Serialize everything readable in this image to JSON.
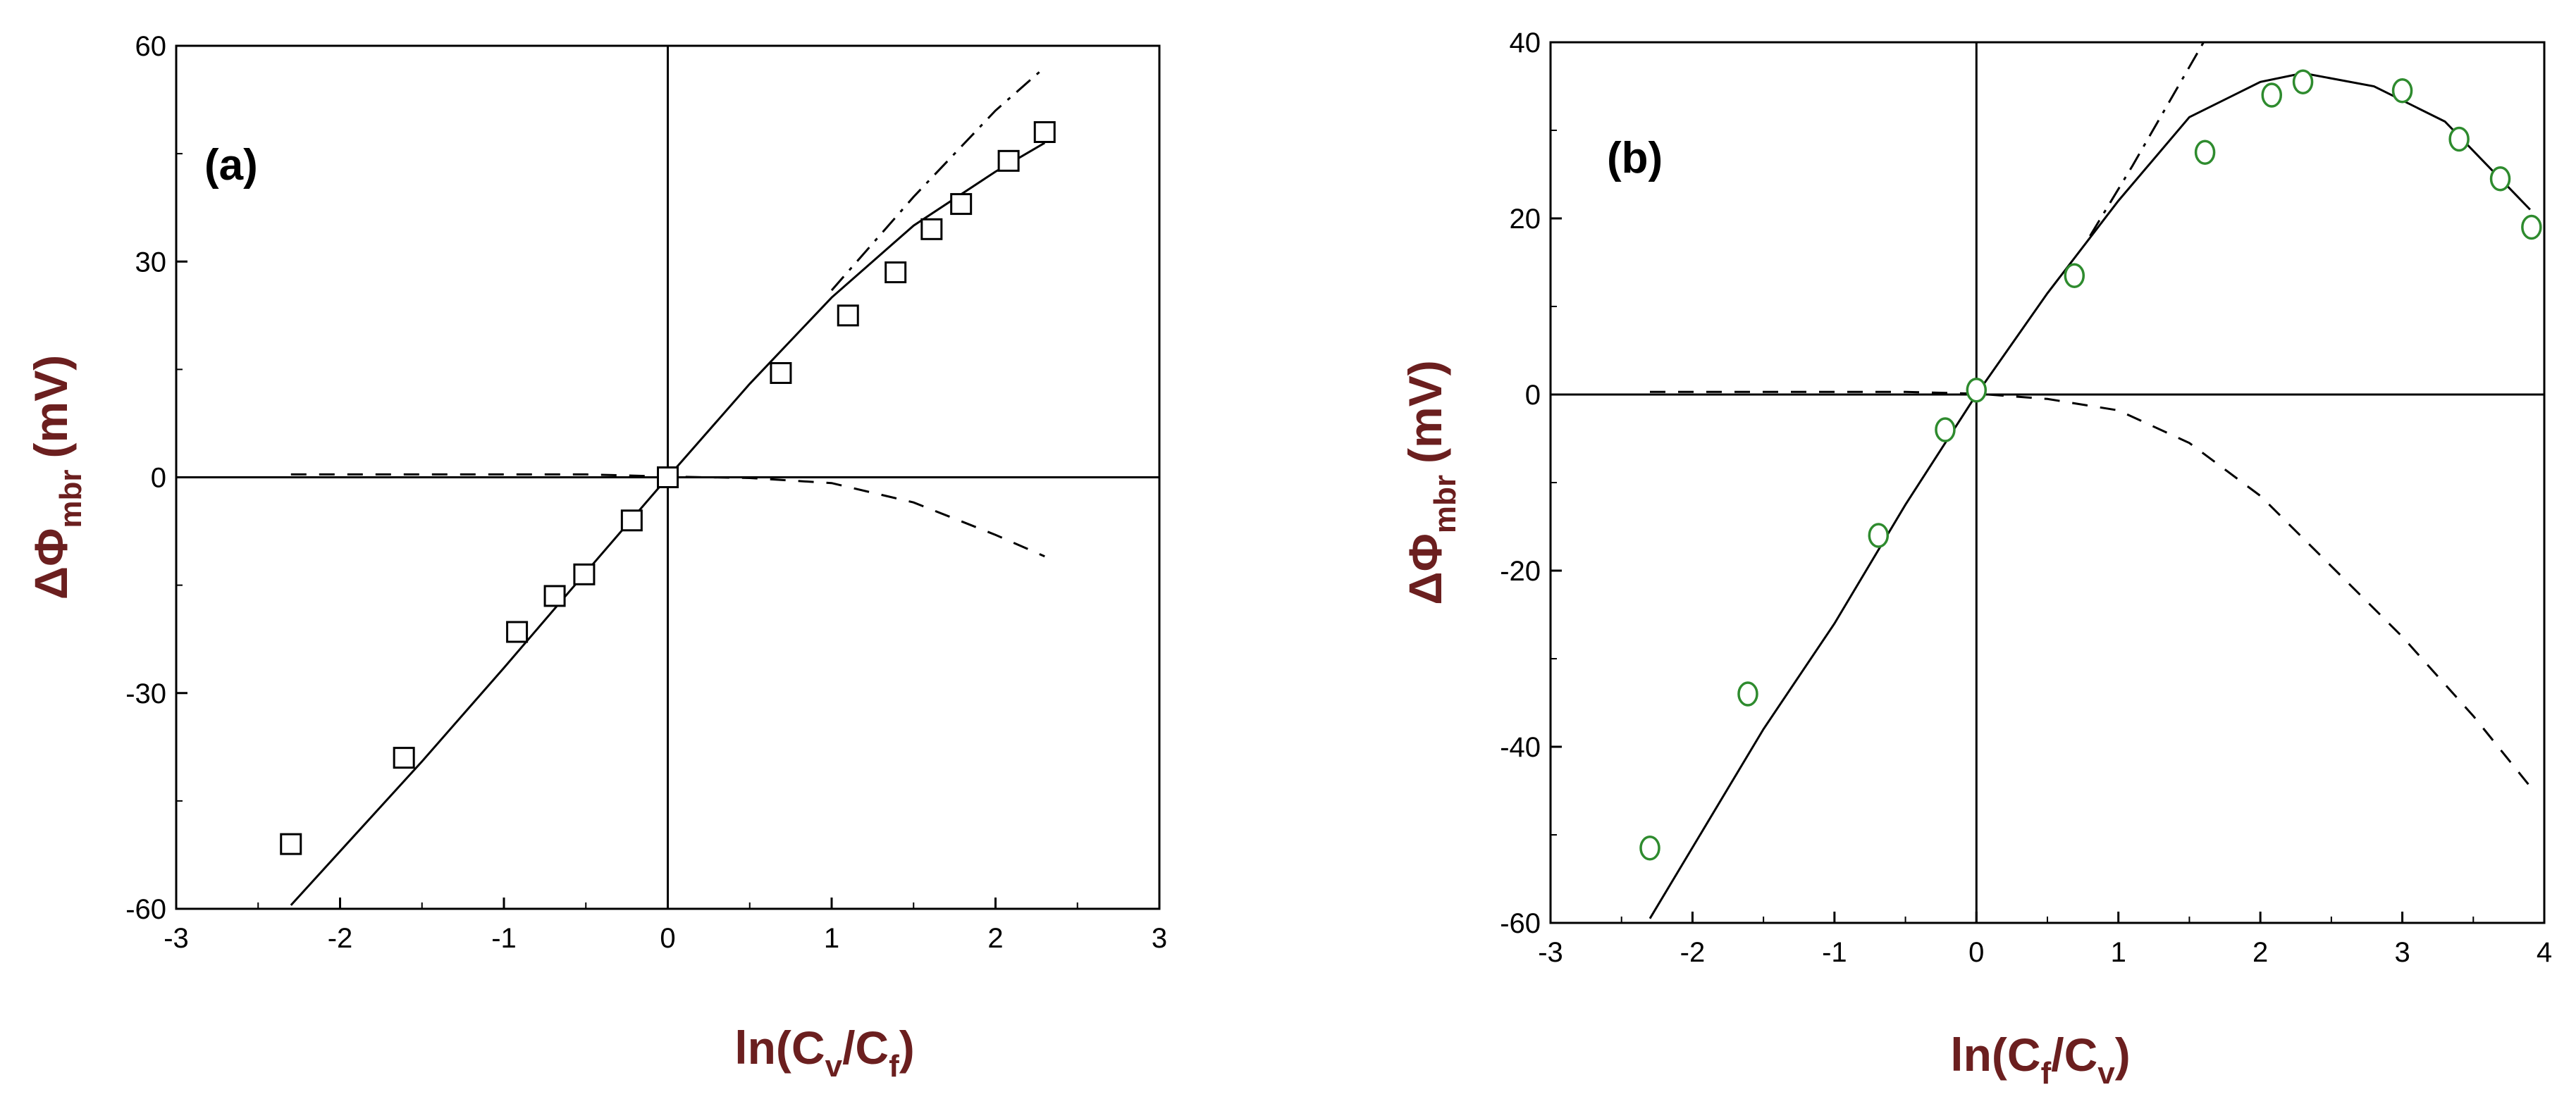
{
  "chart_data": [
    {
      "type": "scatter",
      "panel_label": "(a)",
      "ylabel": {
        "main": "ΔΦ",
        "sub": "mbr",
        "unit": "(mV)"
      },
      "xlabel": {
        "pre": "ln(C",
        "sub1": "v",
        "mid": "/C",
        "sub2": "f",
        "post": ")"
      },
      "xlim": [
        -3,
        3
      ],
      "ylim": [
        -60,
        60
      ],
      "xticks": [
        -3,
        -2,
        -1,
        0,
        1,
        2,
        3
      ],
      "yticks": [
        -60,
        -30,
        0,
        30,
        60
      ],
      "marker": "square",
      "marker_color": "#000000",
      "points": [
        {
          "x": -2.3,
          "y": -51
        },
        {
          "x": -1.61,
          "y": -39
        },
        {
          "x": -0.92,
          "y": -21.5
        },
        {
          "x": -0.69,
          "y": -16.5
        },
        {
          "x": -0.51,
          "y": -13.5
        },
        {
          "x": -0.22,
          "y": -6
        },
        {
          "x": 0,
          "y": 0
        },
        {
          "x": 0.69,
          "y": 14.5
        },
        {
          "x": 1.1,
          "y": 22.5
        },
        {
          "x": 1.39,
          "y": 28.5
        },
        {
          "x": 1.61,
          "y": 34.5
        },
        {
          "x": 1.79,
          "y": 38
        },
        {
          "x": 2.08,
          "y": 44
        },
        {
          "x": 2.3,
          "y": 48
        }
      ],
      "series": [
        {
          "name": "solid",
          "style": "solid",
          "x": [
            -2.3,
            -1.5,
            -1.0,
            -0.5,
            0,
            0.5,
            1.0,
            1.5,
            2.0,
            2.3
          ],
          "y": [
            -59.5,
            -39.5,
            -26.5,
            -13.2,
            0,
            13.0,
            25.0,
            35.0,
            42.5,
            46.5
          ]
        },
        {
          "name": "dash-dot",
          "style": "dashdot",
          "x": [
            1.0,
            1.5,
            2.0,
            2.3
          ],
          "y": [
            26,
            39,
            51,
            57
          ]
        },
        {
          "name": "dashed",
          "style": "dashed",
          "x": [
            -2.3,
            -1.5,
            -1.0,
            -0.5,
            0,
            0.5,
            1.0,
            1.5,
            2.0,
            2.3
          ],
          "y": [
            0.4,
            0.4,
            0.4,
            0.4,
            0.1,
            -0.1,
            -0.8,
            -3.5,
            -8.0,
            -11.0
          ]
        }
      ]
    },
    {
      "type": "scatter",
      "panel_label": "(b)",
      "ylabel": {
        "main": "ΔΦ",
        "sub": "mbr",
        "unit": "(mV)"
      },
      "xlabel": {
        "pre": "ln(C",
        "sub1": "f",
        "mid": "/C",
        "sub2": "v",
        "post": ")"
      },
      "xlim": [
        -3,
        4
      ],
      "ylim": [
        -60,
        40
      ],
      "xticks": [
        -3,
        -2,
        -1,
        0,
        1,
        2,
        3,
        4
      ],
      "yticks": [
        -60,
        -40,
        -20,
        0,
        20,
        40
      ],
      "marker": "circle",
      "marker_color": "#2e8b2e",
      "points": [
        {
          "x": -2.3,
          "y": -51.5
        },
        {
          "x": -1.61,
          "y": -34
        },
        {
          "x": -0.69,
          "y": -16
        },
        {
          "x": -0.22,
          "y": -4
        },
        {
          "x": 0,
          "y": 0.5
        },
        {
          "x": 0.69,
          "y": 13.5
        },
        {
          "x": 1.61,
          "y": 27.5
        },
        {
          "x": 2.08,
          "y": 34
        },
        {
          "x": 2.3,
          "y": 35.5
        },
        {
          "x": 3.0,
          "y": 34.5
        },
        {
          "x": 3.4,
          "y": 29
        },
        {
          "x": 3.69,
          "y": 24.5
        },
        {
          "x": 3.91,
          "y": 19
        }
      ],
      "series": [
        {
          "name": "solid",
          "style": "solid",
          "x": [
            -2.3,
            -1.5,
            -1.0,
            -0.5,
            0,
            0.5,
            1.0,
            1.5,
            2.0,
            2.3,
            2.8,
            3.3,
            3.9
          ],
          "y": [
            -59.5,
            -38,
            -26,
            -12.5,
            0,
            11.5,
            22,
            31.5,
            35.5,
            36.5,
            35.0,
            31.0,
            21.0
          ]
        },
        {
          "name": "dash-dot",
          "style": "dashdot",
          "x": [
            0.8,
            1.1,
            1.35,
            1.6
          ],
          "y": [
            18,
            26,
            33,
            40
          ]
        },
        {
          "name": "dashed",
          "style": "dashed",
          "x": [
            -2.3,
            -1.5,
            -1.0,
            -0.5,
            0,
            0.5,
            1.0,
            1.5,
            2.0,
            2.5,
            3.0,
            3.5,
            3.9
          ],
          "y": [
            0.3,
            0.3,
            0.3,
            0.3,
            0.1,
            -0.5,
            -1.8,
            -5.5,
            -11.5,
            -19.5,
            -27.5,
            -36.5,
            -44.5
          ]
        }
      ]
    }
  ]
}
